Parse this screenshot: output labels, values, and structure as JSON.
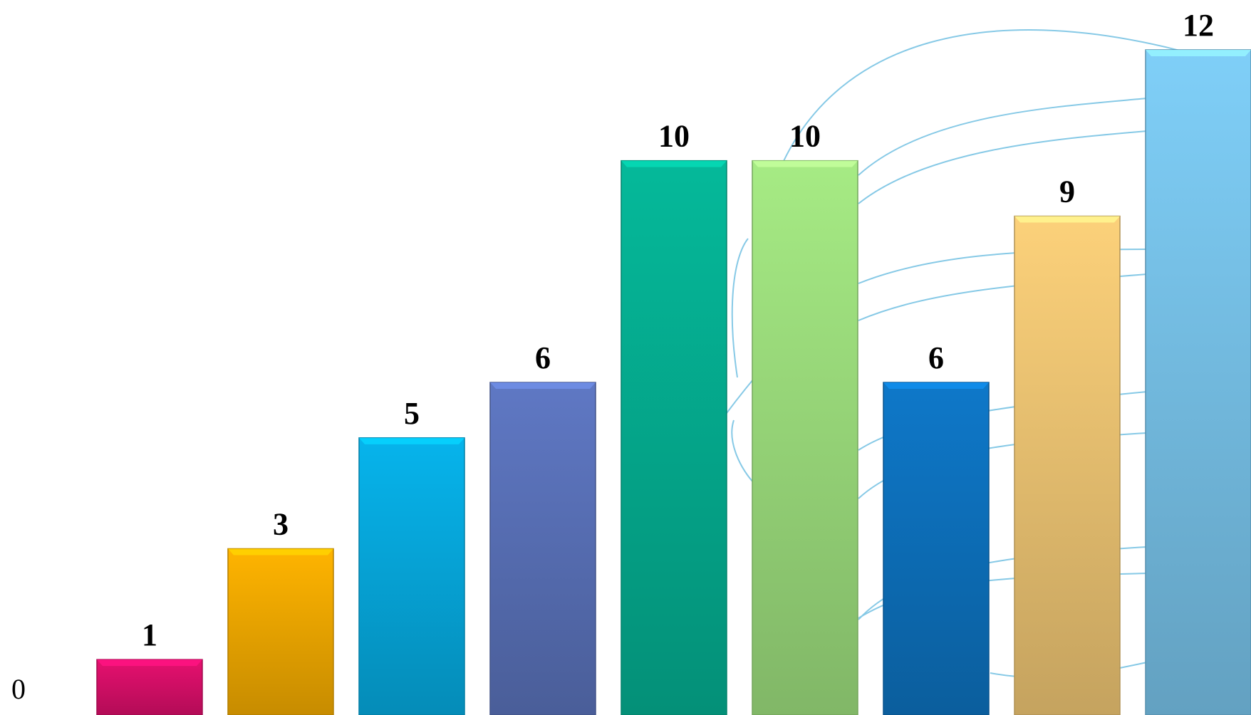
{
  "chart_data": {
    "type": "bar",
    "categories": [
      "",
      "",
      "",
      "",
      "",
      "",
      "",
      "",
      "",
      ""
    ],
    "values": [
      0,
      1,
      3,
      5,
      6,
      10,
      10,
      6,
      9,
      12
    ],
    "value_labels": [
      "0",
      "1",
      "3",
      "5",
      "6",
      "10",
      "10",
      "6",
      "9",
      "12"
    ],
    "colors": [
      "#d1d1d1",
      "#e6106f",
      "#ffb400",
      "#06b4ec",
      "#5f78c4",
      "#05b99a",
      "#a6eb84",
      "#0e78c9",
      "#fcd17a",
      "#7fcff8"
    ],
    "ylim": [
      0,
      12
    ],
    "grid": false,
    "legend": "none",
    "decoration": "light-blue curved connector lines in background"
  }
}
